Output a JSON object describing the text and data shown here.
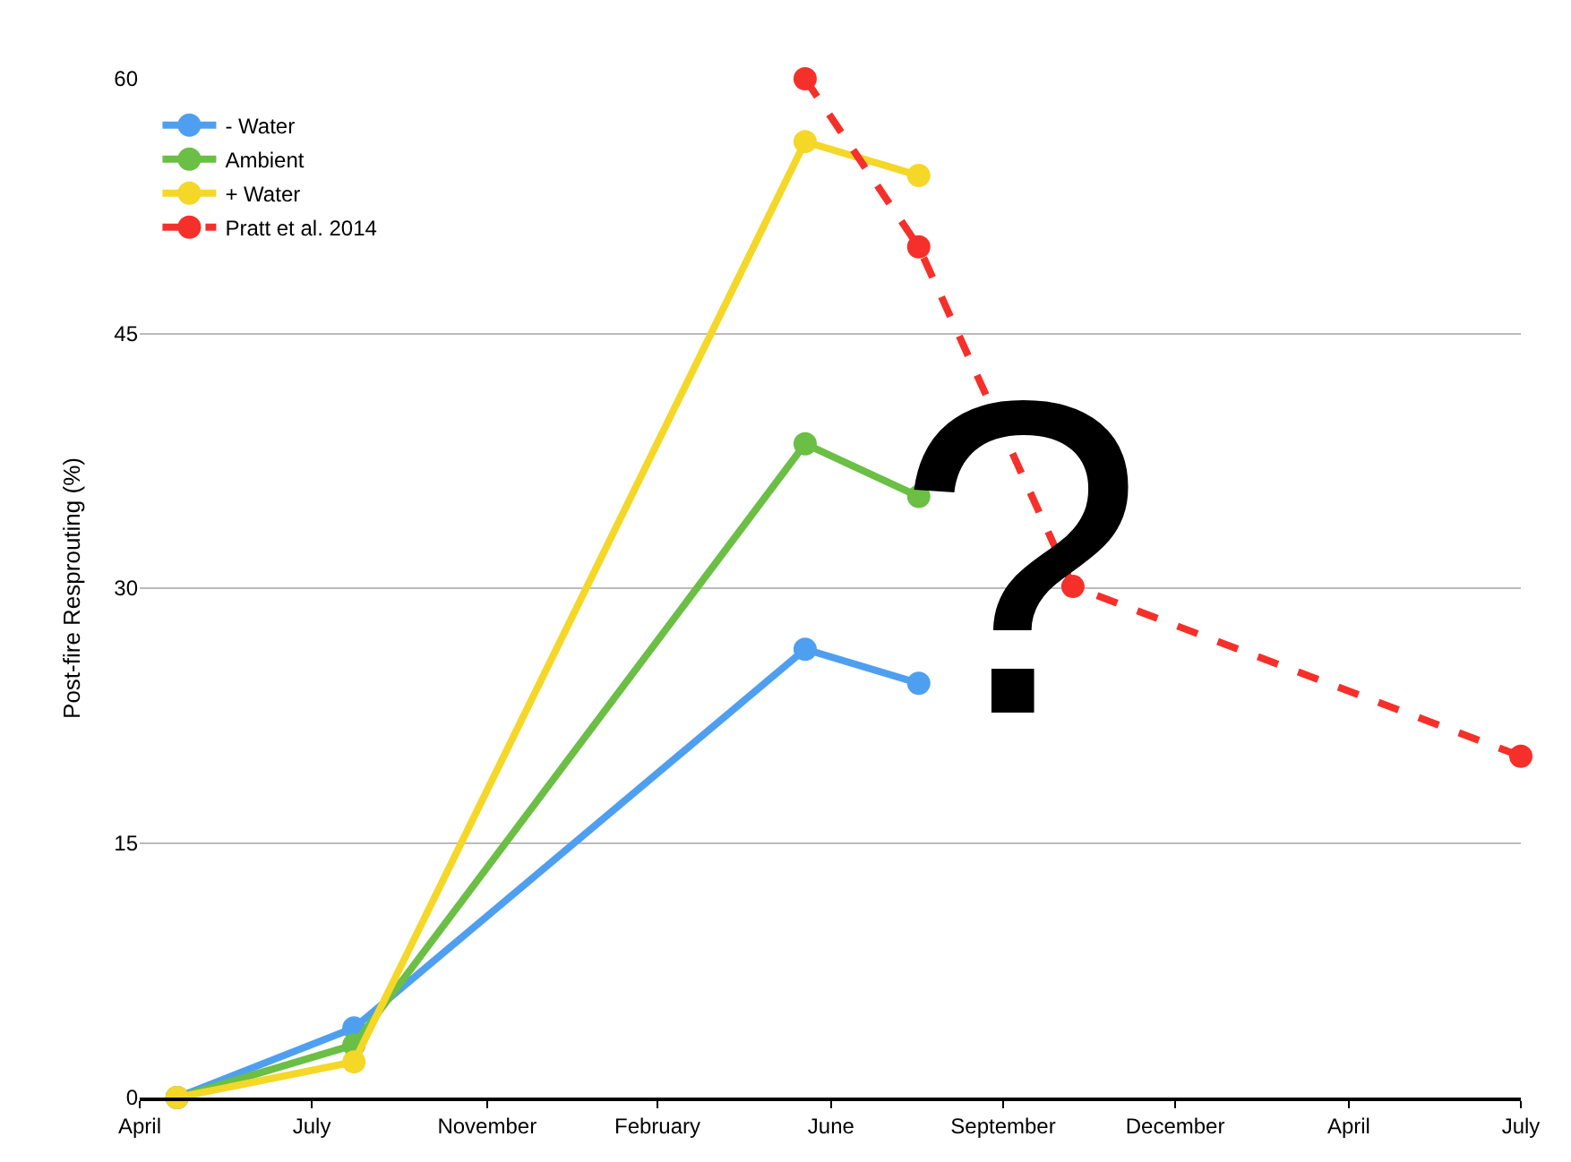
{
  "chart_data": {
    "type": "line",
    "ylabel": "Post-fire Resprouting (%)",
    "xlim": [
      "2013-04-01",
      "2015-07-31"
    ],
    "xticks": [
      {
        "value": "2013-04-01",
        "label": "April"
      },
      {
        "value": "2013-07-16",
        "label": "July"
      },
      {
        "value": "2013-11-01",
        "label": "November"
      },
      {
        "value": "2014-02-14",
        "label": "February"
      },
      {
        "value": "2014-06-01",
        "label": "June"
      },
      {
        "value": "2014-09-15",
        "label": "September"
      },
      {
        "value": "2014-12-30",
        "label": "December"
      },
      {
        "value": "2015-04-16",
        "label": "April"
      },
      {
        "value": "2015-07-31",
        "label": "July"
      }
    ],
    "ylim": [
      0,
      60
    ],
    "yticks": [
      0,
      15,
      30,
      45,
      60
    ],
    "grid": "y",
    "legend": "top left",
    "marker": "circle",
    "series": [
      {
        "name": "- Water",
        "color": "#4f9ff0",
        "x": [
          "2013-04-24",
          "2013-08-11",
          "2014-05-16",
          "2014-07-25"
        ],
        "values": [
          0,
          4.1,
          26.4,
          24.4
        ],
        "line_style": "solid"
      },
      {
        "name": "Ambient",
        "color": "#6abf44",
        "x": [
          "2013-04-24",
          "2013-08-11",
          "2014-05-16",
          "2014-07-25"
        ],
        "values": [
          0,
          3.1,
          38.5,
          35.4
        ],
        "line_style": "solid"
      },
      {
        "name": "+ Water",
        "color": "#f5d727",
        "x": [
          "2013-04-24",
          "2013-08-11",
          "2014-05-16",
          "2014-07-25"
        ],
        "values": [
          0,
          2.1,
          56.3,
          54.3
        ],
        "line_style": "solid"
      },
      {
        "name": "Pratt et al. 2014",
        "color": "#f5302a",
        "x": [
          "2014-05-16",
          "2014-07-25",
          "2014-10-28",
          "2015-07-31"
        ],
        "values": [
          60,
          50.1,
          30.1,
          20.1
        ],
        "line_style": "dashed"
      }
    ],
    "annotations": [
      "?"
    ]
  }
}
